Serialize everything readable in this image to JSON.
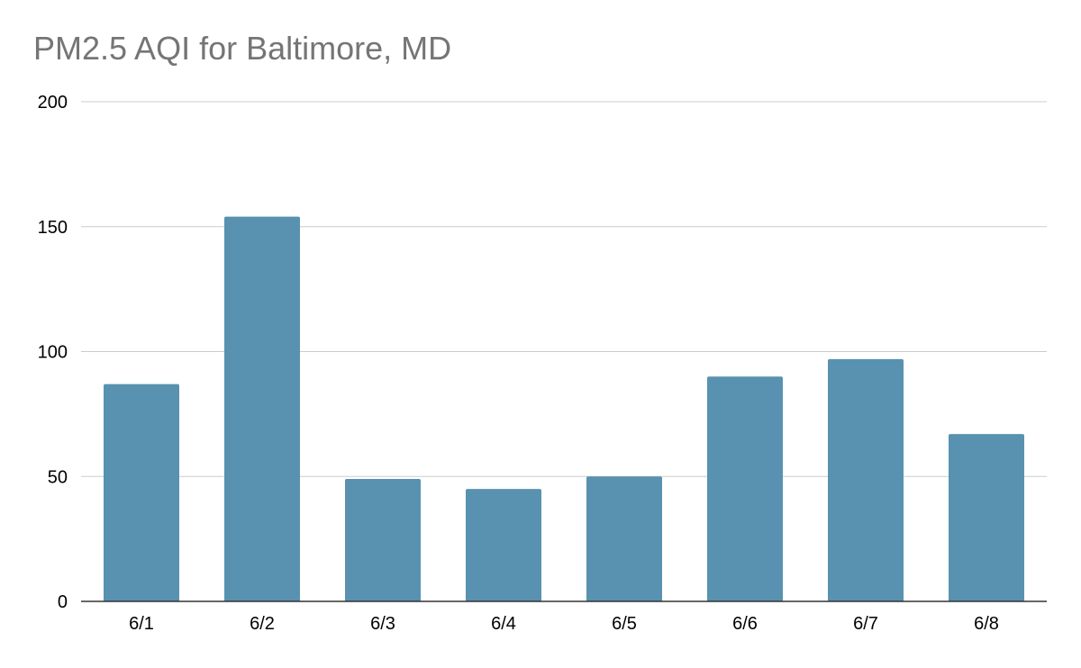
{
  "chart_data": {
    "type": "bar",
    "title": "PM2.5 AQI for Baltimore, MD",
    "xlabel": "",
    "ylabel": "",
    "categories": [
      "6/1",
      "6/2",
      "6/3",
      "6/4",
      "6/5",
      "6/6",
      "6/7",
      "6/8"
    ],
    "values": [
      87,
      154,
      49,
      45,
      50,
      90,
      97,
      67
    ],
    "ylim": [
      0,
      200
    ],
    "yticks": [
      "0",
      "50",
      "100",
      "150",
      "200"
    ],
    "grid": true,
    "legend": "none",
    "colors": {
      "bar": "#5892b0",
      "grid": "#cccccc",
      "axis": "#333333",
      "title": "#757575"
    }
  }
}
